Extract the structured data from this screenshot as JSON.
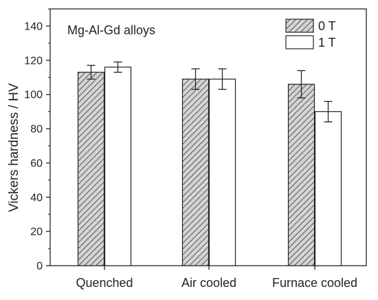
{
  "chart_data": {
    "type": "bar",
    "annotation": "Mg-Al-Gd alloys",
    "ylabel": "Vickers hardness / HV",
    "xlabel": "",
    "ylim": [
      0,
      150
    ],
    "yticks": [
      0,
      20,
      40,
      60,
      80,
      100,
      120,
      140
    ],
    "categories": [
      "Quenched",
      "Air cooled",
      "Furnace cooled"
    ],
    "series": [
      {
        "name": "0 T",
        "values": [
          113,
          109,
          106
        ],
        "errors": [
          4,
          6,
          8
        ],
        "fill": "hatched"
      },
      {
        "name": "1 T",
        "values": [
          116,
          109,
          90
        ],
        "errors": [
          3,
          6,
          6
        ],
        "fill": "white"
      }
    ],
    "legend_position": "top-right",
    "grid": false,
    "colors": {
      "hatch_bg": "#d4d4d4",
      "hatch_line": "#333333",
      "axis": "#222222"
    }
  }
}
